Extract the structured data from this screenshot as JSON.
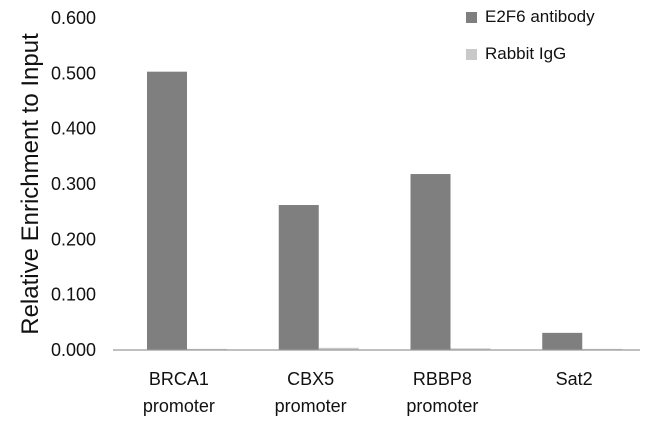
{
  "chart_data": {
    "type": "bar",
    "title": "",
    "xlabel": "",
    "ylabel": "Relative Enrichment to Input",
    "ylim": [
      0,
      0.6
    ],
    "y_ticks": [
      "0.000",
      "0.100",
      "0.200",
      "0.300",
      "0.400",
      "0.500",
      "0.600"
    ],
    "categories": [
      [
        "BRCA1",
        "promoter"
      ],
      [
        "CBX5",
        "promoter"
      ],
      [
        "RBBP8",
        "promoter"
      ],
      [
        "Sat2",
        ""
      ]
    ],
    "series": [
      {
        "name": "E2F6 antibody",
        "values": [
          0.503,
          0.262,
          0.318,
          0.031
        ],
        "color": "#7f7f7f"
      },
      {
        "name": "Rabbit IgG",
        "values": [
          0.002,
          0.004,
          0.003,
          0.002
        ],
        "color": "#c9c9c9"
      }
    ],
    "legend": {
      "position": "top-right"
    },
    "grid": false,
    "colors": {
      "axis": "#9a9a9a",
      "text": "#111111"
    }
  }
}
